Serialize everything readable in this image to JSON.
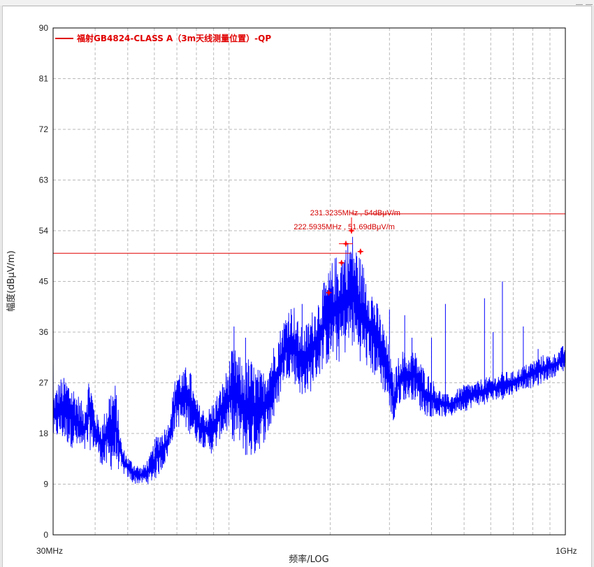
{
  "window": {
    "frame_color": "#e8e8e8"
  },
  "chart_data": {
    "type": "line",
    "title": "",
    "xlabel": "频率/LOG",
    "ylabel": "幅度(dBμV/m)",
    "x_scale": "log",
    "xlim": [
      30,
      1000
    ],
    "x_unit": "MHz",
    "x_tick_labels": [
      "30MHz",
      "1GHz"
    ],
    "ylim": [
      0,
      90
    ],
    "y_ticks": [
      0,
      9,
      18,
      27,
      36,
      45,
      54,
      63,
      72,
      81,
      90
    ],
    "y_tick_labels": [
      "0",
      "9",
      "18",
      "27",
      "36",
      "45",
      "54",
      "63",
      "72",
      "81",
      "90"
    ],
    "grid": true,
    "legend_position": "top-left",
    "colors": {
      "trace": "#0000ff",
      "limit": "#e00000",
      "marker": "#ff0000",
      "grid": "#b9b9b9"
    },
    "series": [
      {
        "name": "",
        "color": "#0000ff",
        "envelope": [
          {
            "x": 30,
            "lo": 17,
            "hi": 25
          },
          {
            "x": 31.5,
            "lo": 17,
            "hi": 28
          },
          {
            "x": 33,
            "lo": 16,
            "hi": 28
          },
          {
            "x": 35,
            "lo": 15,
            "hi": 26
          },
          {
            "x": 37,
            "lo": 14,
            "hi": 23
          },
          {
            "x": 38.5,
            "lo": 15,
            "hi": 29
          },
          {
            "x": 40,
            "lo": 15,
            "hi": 22
          },
          {
            "x": 42,
            "lo": 12,
            "hi": 20
          },
          {
            "x": 44,
            "lo": 11,
            "hi": 26
          },
          {
            "x": 46,
            "lo": 12,
            "hi": 27
          },
          {
            "x": 48,
            "lo": 11,
            "hi": 16
          },
          {
            "x": 50,
            "lo": 10,
            "hi": 14
          },
          {
            "x": 52,
            "lo": 9,
            "hi": 13
          },
          {
            "x": 55,
            "lo": 9,
            "hi": 12
          },
          {
            "x": 58,
            "lo": 9,
            "hi": 14
          },
          {
            "x": 61,
            "lo": 10,
            "hi": 18
          },
          {
            "x": 64,
            "lo": 12,
            "hi": 19
          },
          {
            "x": 66,
            "lo": 14,
            "hi": 20
          },
          {
            "x": 68,
            "lo": 17,
            "hi": 25
          },
          {
            "x": 70,
            "lo": 19,
            "hi": 30
          },
          {
            "x": 73,
            "lo": 19,
            "hi": 29
          },
          {
            "x": 76,
            "lo": 18,
            "hi": 31
          },
          {
            "x": 79,
            "lo": 17,
            "hi": 25
          },
          {
            "x": 82,
            "lo": 16,
            "hi": 23
          },
          {
            "x": 86,
            "lo": 15,
            "hi": 22
          },
          {
            "x": 90,
            "lo": 14,
            "hi": 24
          },
          {
            "x": 94,
            "lo": 17,
            "hi": 26
          },
          {
            "x": 98,
            "lo": 18,
            "hi": 29
          },
          {
            "x": 102,
            "lo": 17,
            "hi": 33
          },
          {
            "x": 106,
            "lo": 16,
            "hi": 33
          },
          {
            "x": 110,
            "lo": 15,
            "hi": 30
          },
          {
            "x": 115,
            "lo": 13,
            "hi": 32
          },
          {
            "x": 120,
            "lo": 14,
            "hi": 30
          },
          {
            "x": 126,
            "lo": 16,
            "hi": 29
          },
          {
            "x": 132,
            "lo": 18,
            "hi": 32
          },
          {
            "x": 138,
            "lo": 21,
            "hi": 35
          },
          {
            "x": 145,
            "lo": 27,
            "hi": 38
          },
          {
            "x": 150,
            "lo": 28,
            "hi": 41
          },
          {
            "x": 156,
            "lo": 27,
            "hi": 41
          },
          {
            "x": 162,
            "lo": 25,
            "hi": 37
          },
          {
            "x": 168,
            "lo": 25,
            "hi": 37
          },
          {
            "x": 174,
            "lo": 25,
            "hi": 39
          },
          {
            "x": 180,
            "lo": 27,
            "hi": 41
          },
          {
            "x": 186,
            "lo": 28,
            "hi": 43
          },
          {
            "x": 192,
            "lo": 30,
            "hi": 45
          },
          {
            "x": 198,
            "lo": 30,
            "hi": 47
          },
          {
            "x": 204,
            "lo": 31,
            "hi": 49
          },
          {
            "x": 210,
            "lo": 30,
            "hi": 50
          },
          {
            "x": 216,
            "lo": 31,
            "hi": 51
          },
          {
            "x": 222,
            "lo": 32,
            "hi": 52
          },
          {
            "x": 228,
            "lo": 33,
            "hi": 53
          },
          {
            "x": 232,
            "lo": 33,
            "hi": 54
          },
          {
            "x": 238,
            "lo": 32,
            "hi": 52
          },
          {
            "x": 244,
            "lo": 31,
            "hi": 50
          },
          {
            "x": 252,
            "lo": 30,
            "hi": 48
          },
          {
            "x": 260,
            "lo": 29,
            "hi": 46
          },
          {
            "x": 270,
            "lo": 28,
            "hi": 43
          },
          {
            "x": 280,
            "lo": 27,
            "hi": 40
          },
          {
            "x": 290,
            "lo": 25,
            "hi": 37
          },
          {
            "x": 300,
            "lo": 23,
            "hi": 33
          },
          {
            "x": 308,
            "lo": 19,
            "hi": 28
          },
          {
            "x": 316,
            "lo": 22,
            "hi": 31
          },
          {
            "x": 326,
            "lo": 24,
            "hi": 33
          },
          {
            "x": 340,
            "lo": 24,
            "hi": 32
          },
          {
            "x": 355,
            "lo": 24,
            "hi": 33
          },
          {
            "x": 370,
            "lo": 22,
            "hi": 31
          },
          {
            "x": 385,
            "lo": 21,
            "hi": 29
          },
          {
            "x": 400,
            "lo": 21,
            "hi": 28
          },
          {
            "x": 420,
            "lo": 21,
            "hi": 26
          },
          {
            "x": 440,
            "lo": 21,
            "hi": 25
          },
          {
            "x": 460,
            "lo": 21,
            "hi": 25
          },
          {
            "x": 480,
            "lo": 22,
            "hi": 26
          },
          {
            "x": 510,
            "lo": 22,
            "hi": 27
          },
          {
            "x": 540,
            "lo": 23,
            "hi": 27
          },
          {
            "x": 570,
            "lo": 23,
            "hi": 28
          },
          {
            "x": 610,
            "lo": 24,
            "hi": 28
          },
          {
            "x": 650,
            "lo": 24,
            "hi": 29
          },
          {
            "x": 700,
            "lo": 25,
            "hi": 29
          },
          {
            "x": 750,
            "lo": 26,
            "hi": 30
          },
          {
            "x": 800,
            "lo": 26,
            "hi": 31
          },
          {
            "x": 860,
            "lo": 27,
            "hi": 32
          },
          {
            "x": 920,
            "lo": 28,
            "hi": 32
          },
          {
            "x": 1000,
            "lo": 29,
            "hi": 34
          }
        ],
        "spikes": [
          {
            "x": 103.5,
            "y": 37
          },
          {
            "x": 112,
            "y": 35
          },
          {
            "x": 165,
            "y": 41
          },
          {
            "x": 300,
            "y": 40
          },
          {
            "x": 333,
            "y": 39
          },
          {
            "x": 350,
            "y": 35
          },
          {
            "x": 400,
            "y": 35
          },
          {
            "x": 440,
            "y": 41
          },
          {
            "x": 575,
            "y": 42
          },
          {
            "x": 610,
            "y": 36
          },
          {
            "x": 650,
            "y": 45
          },
          {
            "x": 750,
            "y": 37
          },
          {
            "x": 830,
            "y": 33
          }
        ]
      }
    ],
    "limit_line": {
      "legend_label": "福射GB4824-CLASS A（3m天线测量位置）-QP",
      "color": "#e00000",
      "segments": [
        {
          "x_start": 30,
          "x_end": 230,
          "y": 50
        },
        {
          "x_start": 230,
          "x_end": 1000,
          "y": 57
        }
      ]
    },
    "markers": [
      {
        "x": 198,
        "y": 43
      },
      {
        "x": 216,
        "y": 48.3
      },
      {
        "x": 222.5935,
        "y": 51.69,
        "label": "222.5935MHz , 51.69dBμV/m"
      },
      {
        "x": 231.3235,
        "y": 54,
        "label": "231.3235MHz , 54dBμV/m"
      },
      {
        "x": 246,
        "y": 50.3
      }
    ]
  }
}
